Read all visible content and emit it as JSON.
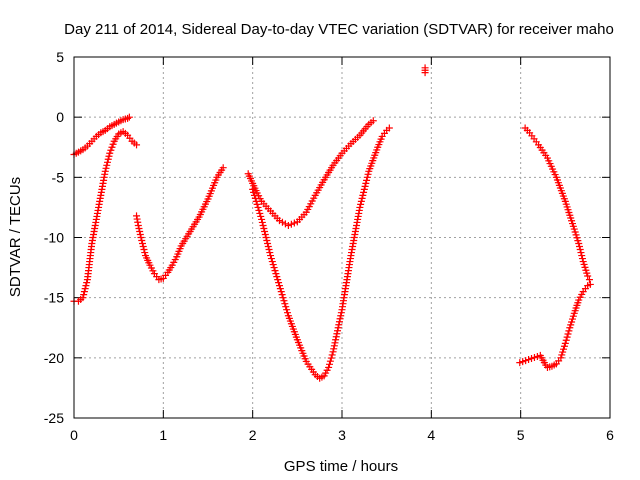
{
  "chart_data": {
    "type": "scatter",
    "title": "Day 211 of 2014, Sidereal Day-to-day VTEC variation (SDTVAR) for receiver maho",
    "xlabel": "GPS time / hours",
    "ylabel": "SDTVAR / TECUs",
    "xlim": [
      0,
      6
    ],
    "ylim": [
      -25,
      5
    ],
    "xticks": [
      0,
      1,
      2,
      3,
      4,
      5,
      6
    ],
    "yticks": [
      -25,
      -20,
      -15,
      -10,
      -5,
      0,
      5
    ],
    "grid": true,
    "marker": "+",
    "color": "#ff0000",
    "series": [
      {
        "points": [
          [
            0.0,
            -3.1
          ],
          [
            0.05,
            -2.9
          ],
          [
            0.1,
            -2.7
          ],
          [
            0.15,
            -2.4
          ],
          [
            0.2,
            -2.0
          ],
          [
            0.25,
            -1.6
          ],
          [
            0.3,
            -1.3
          ],
          [
            0.35,
            -1.1
          ],
          [
            0.4,
            -0.8
          ],
          [
            0.45,
            -0.6
          ],
          [
            0.5,
            -0.4
          ],
          [
            0.55,
            -0.2
          ],
          [
            0.6,
            -0.1
          ],
          [
            0.62,
            0.0
          ]
        ]
      },
      {
        "points": [
          [
            0.0,
            -15.3
          ],
          [
            0.05,
            -15.3
          ],
          [
            0.1,
            -15.0
          ],
          [
            0.15,
            -13.5
          ],
          [
            0.2,
            -10.5
          ],
          [
            0.25,
            -8.5
          ],
          [
            0.3,
            -6.5
          ],
          [
            0.35,
            -4.5
          ],
          [
            0.4,
            -3.0
          ],
          [
            0.45,
            -2.0
          ],
          [
            0.5,
            -1.4
          ],
          [
            0.55,
            -1.2
          ],
          [
            0.6,
            -1.5
          ],
          [
            0.65,
            -2.0
          ],
          [
            0.7,
            -2.3
          ]
        ]
      },
      {
        "points": [
          [
            0.7,
            -8.2
          ],
          [
            0.72,
            -9.0
          ],
          [
            0.75,
            -10.0
          ],
          [
            0.8,
            -11.5
          ],
          [
            0.85,
            -12.3
          ],
          [
            0.9,
            -13.0
          ],
          [
            0.95,
            -13.5
          ],
          [
            1.0,
            -13.4
          ],
          [
            1.05,
            -12.9
          ],
          [
            1.1,
            -12.3
          ],
          [
            1.15,
            -11.6
          ],
          [
            1.2,
            -10.7
          ],
          [
            1.3,
            -9.5
          ],
          [
            1.4,
            -8.3
          ],
          [
            1.5,
            -6.8
          ],
          [
            1.6,
            -5.0
          ],
          [
            1.67,
            -4.2
          ]
        ]
      },
      {
        "points": [
          [
            1.95,
            -4.7
          ],
          [
            2.0,
            -5.5
          ],
          [
            2.05,
            -6.3
          ],
          [
            2.1,
            -7.0
          ],
          [
            2.2,
            -7.8
          ],
          [
            2.3,
            -8.6
          ],
          [
            2.4,
            -9.0
          ],
          [
            2.5,
            -8.7
          ],
          [
            2.6,
            -7.9
          ],
          [
            2.7,
            -6.5
          ],
          [
            2.8,
            -5.2
          ],
          [
            2.9,
            -4.0
          ],
          [
            3.0,
            -3.0
          ],
          [
            3.1,
            -2.2
          ],
          [
            3.2,
            -1.5
          ],
          [
            3.3,
            -0.6
          ],
          [
            3.35,
            -0.3
          ]
        ]
      },
      {
        "points": [
          [
            2.0,
            -6.0
          ],
          [
            2.1,
            -8.5
          ],
          [
            2.2,
            -11.5
          ],
          [
            2.3,
            -14.0
          ],
          [
            2.4,
            -16.5
          ],
          [
            2.5,
            -18.5
          ],
          [
            2.6,
            -20.3
          ],
          [
            2.7,
            -21.4
          ],
          [
            2.75,
            -21.7
          ],
          [
            2.8,
            -21.5
          ],
          [
            2.85,
            -20.8
          ],
          [
            2.9,
            -19.5
          ],
          [
            3.0,
            -16.0
          ],
          [
            3.1,
            -11.5
          ],
          [
            3.2,
            -7.5
          ],
          [
            3.3,
            -4.5
          ],
          [
            3.4,
            -2.5
          ],
          [
            3.45,
            -1.6
          ],
          [
            3.5,
            -1.1
          ],
          [
            3.53,
            -0.9
          ]
        ]
      },
      {
        "points": [
          [
            3.93,
            4.1
          ],
          [
            3.93,
            3.7
          ]
        ]
      },
      {
        "points": [
          [
            5.05,
            -0.9
          ],
          [
            5.1,
            -1.3
          ],
          [
            5.15,
            -1.8
          ],
          [
            5.2,
            -2.3
          ],
          [
            5.3,
            -3.4
          ],
          [
            5.4,
            -5.0
          ],
          [
            5.5,
            -7.0
          ],
          [
            5.6,
            -9.3
          ],
          [
            5.65,
            -10.5
          ],
          [
            5.7,
            -12.0
          ],
          [
            5.75,
            -13.2
          ],
          [
            5.77,
            -13.5
          ]
        ]
      },
      {
        "points": [
          [
            4.99,
            -20.4
          ],
          [
            5.22,
            -19.8
          ],
          [
            5.25,
            -20.2
          ],
          [
            5.28,
            -20.6
          ],
          [
            5.3,
            -20.8
          ],
          [
            5.35,
            -20.7
          ],
          [
            5.4,
            -20.5
          ],
          [
            5.45,
            -20.0
          ],
          [
            5.5,
            -18.8
          ],
          [
            5.55,
            -17.5
          ],
          [
            5.6,
            -16.3
          ],
          [
            5.65,
            -15.2
          ],
          [
            5.7,
            -14.5
          ],
          [
            5.75,
            -14.0
          ],
          [
            5.78,
            -13.9
          ]
        ]
      }
    ]
  }
}
